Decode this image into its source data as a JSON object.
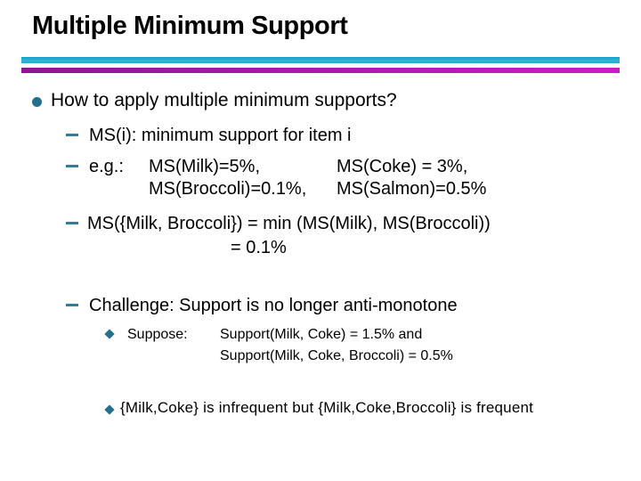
{
  "slide": {
    "title": "Multiple Minimum Support",
    "colors": {
      "background": "#FFFFFF",
      "text": "#000000",
      "bullet_teal": "#24708E",
      "dash_teal": "#2E7E9C",
      "rule_cyan": "#24AECB",
      "rule_magenta_start": "#8E1692",
      "rule_magenta_end": "#C91CC9"
    },
    "main_bullet": {
      "icon": "circle-bullet",
      "text": "How to apply multiple minimum supports?"
    },
    "ms_definition": "MS(i): minimum support for item i",
    "example": {
      "label": "e.g.:",
      "rows": [
        {
          "left": "MS(Milk)=5%,",
          "right": "MS(Coke) = 3%,"
        },
        {
          "left": "MS(Broccoli)=0.1%,",
          "right": "MS(Salmon)=0.5%"
        }
      ]
    },
    "min_rule": {
      "line1": "MS({Milk, Broccoli}) = min (MS(Milk), MS(Broccoli))",
      "line2": "= 0.1%"
    },
    "challenge": "Challenge: Support is no longer anti-monotone",
    "suppose": {
      "icon": "diamond-bullet",
      "label": "Suppose:",
      "line1": "Support(Milk, Coke) = 1.5% and",
      "line2": "Support(Milk, Coke, Broccoli) = 0.5%"
    },
    "conclusion": {
      "icon": "diamond-bullet",
      "text": "{Milk,Coke} is infrequent but {Milk,Coke,Broccoli} is frequent"
    }
  }
}
